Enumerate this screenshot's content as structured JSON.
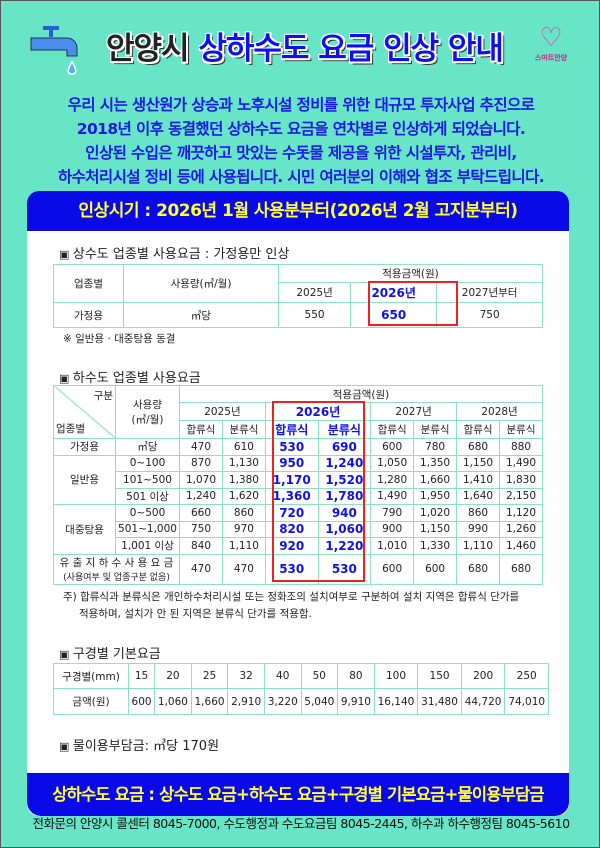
{
  "header": {
    "city": "안양시",
    "title": "상하수도 요금 인상 안내",
    "logo_text": "스마트안양",
    "icons": [
      "faucet-icon",
      "water-drop-icon",
      "smart-anyang-logo"
    ]
  },
  "intro": [
    "우리 시는 생산원가 상승과 노후시설 정비를 위한 대규모 투자사업 추진으로",
    "2018년 이후 동결했던  상하수도 요금을 연차별로 인상하게 되었습니다.",
    "인상된 수입은 깨끗하고 맛있는 수돗물 제공을 위한  시설투자, 관리비,",
    "하수처리시설 정비 등에 사용됩니다. 시민 여러분의 이해와 협조 부탁드립니다."
  ],
  "period": "인상시기 : 2026년 1월 사용분부터(2026년 2월 고지분부터)",
  "water": {
    "title": "상수도 업종별 사용요금 : 가정용만 인상",
    "h_type": "업종별",
    "h_usage": "사용량(㎥/월)",
    "h_amount": "적용금액(원)",
    "years": [
      "2025년",
      "2026년",
      "2027년부터"
    ],
    "row": {
      "type": "가정용",
      "unit": "㎥당",
      "values": [
        "550",
        "650",
        "750"
      ]
    },
    "note": "※ 일반용 · 대중탕용 동결"
  },
  "sewer": {
    "title": "하수도 업종별 사용요금",
    "h_div": "구분",
    "h_type": "업종별",
    "h_usage": "사용량\n(㎥/월)",
    "h_amount": "적용금액(원)",
    "years": [
      "2025년",
      "2026년",
      "2027년",
      "2028년"
    ],
    "sub": [
      "합류식",
      "분류식"
    ],
    "rows": [
      {
        "type": "가정용",
        "usage": "㎥당",
        "values": [
          "470",
          "610",
          "530",
          "690",
          "600",
          "780",
          "680",
          "880"
        ]
      },
      {
        "type": "일반용",
        "usage": "0~100",
        "values": [
          "870",
          "1,130",
          "950",
          "1,240",
          "1,050",
          "1,350",
          "1,150",
          "1,490"
        ]
      },
      {
        "type": "일반용",
        "usage": "101~500",
        "values": [
          "1,070",
          "1,380",
          "1,170",
          "1,520",
          "1,280",
          "1,660",
          "1,410",
          "1,830"
        ]
      },
      {
        "type": "일반용",
        "usage": "501 이상",
        "values": [
          "1,240",
          "1,620",
          "1,360",
          "1,780",
          "1,490",
          "1,950",
          "1,640",
          "2,150"
        ]
      },
      {
        "type": "대중탕용",
        "usage": "0~500",
        "values": [
          "660",
          "860",
          "720",
          "940",
          "790",
          "1,020",
          "860",
          "1,120"
        ]
      },
      {
        "type": "대중탕용",
        "usage": "501~1,000",
        "values": [
          "750",
          "970",
          "820",
          "1,060",
          "900",
          "1,150",
          "990",
          "1,260"
        ]
      },
      {
        "type": "대중탕용",
        "usage": "1,001 이상",
        "values": [
          "840",
          "1,110",
          "920",
          "1,220",
          "1,010",
          "1,330",
          "1,110",
          "1,460"
        ]
      }
    ],
    "groundwater": {
      "label": "유 출 지 하 수 사 용 요 금",
      "sub": "(사용여부 및 업종구분 없음)",
      "values": [
        "470",
        "470",
        "530",
        "530",
        "600",
        "600",
        "680",
        "680"
      ]
    },
    "note1": "주) 합류식과 분류식은 개인하수처리시설 또는 정화조의 설치여부로 구분하여 설치 지역은 합류식 단가를",
    "note2": "적용하며, 설치가 안 된 지역은 분류식 단가를 적용함."
  },
  "meter": {
    "title": "구경별 기본요금",
    "h_size": "구경별(mm)",
    "h_amount": "금액(원)",
    "sizes": [
      "15",
      "20",
      "25",
      "32",
      "40",
      "50",
      "80",
      "100",
      "150",
      "200",
      "250"
    ],
    "amounts": [
      "600",
      "1,060",
      "1,660",
      "2,910",
      "3,220",
      "5,040",
      "9,910",
      "16,140",
      "31,480",
      "44,720",
      "74,010"
    ]
  },
  "levy": "물이용부담금: ㎥당 170원",
  "formula": "상하수도 요금 : 상수도 요금+하수도 요금+구경별 기본요금+물이용부담금",
  "footer": "전화문의 안양시 콜센터 8045-7000, 수도행정과 수도요금팀 8045-2445, 하수과 하수행정팀 8045-5610",
  "colors": {
    "background": "#68e4c6",
    "accent_blue": "#0a0ae8",
    "highlight_yellow": "#ffff33",
    "highlight_red": "#ee2020"
  }
}
